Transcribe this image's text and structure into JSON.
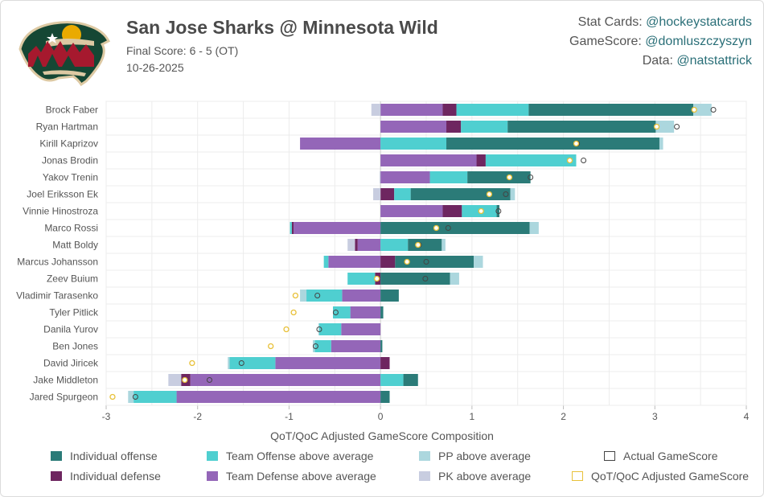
{
  "header": {
    "title": "San Jose Sharks @ Minnesota Wild",
    "final_score": "Final Score: 6 - 5 (OT)",
    "date": "10-26-2025",
    "credits": [
      {
        "label": "Stat Cards: ",
        "handle": "@hockeystatcards"
      },
      {
        "label": "GameScore: ",
        "handle": "@domluszczyszyn"
      },
      {
        "label": "Data: ",
        "handle": "@natstattrick"
      }
    ]
  },
  "colors": {
    "ind_off": "#2b7b78",
    "ind_def": "#6e2660",
    "team_off": "#4fcfd0",
    "team_def": "#9466b8",
    "pp": "#acd7de",
    "pk": "#c8cde0",
    "actual": "#444444",
    "adjusted": "#e8c13a"
  },
  "chart_data": {
    "type": "bar",
    "orientation": "horizontal",
    "stacked": true,
    "title": "",
    "xlabel": "QoT/QoC Adjusted GameScore Composition",
    "ylabel": "",
    "xlim": [
      -3,
      4
    ],
    "xticks": [
      "-3",
      "-2",
      "-1",
      "0",
      "1",
      "2",
      "3",
      "4"
    ],
    "grid": true,
    "legend_position": "bottom",
    "categories": [
      "Brock Faber",
      "Ryan Hartman",
      "Kirill Kaprizov",
      "Jonas Brodin",
      "Yakov Trenin",
      "Joel Eriksson Ek",
      "Vinnie Hinostroza",
      "Marco Rossi",
      "Matt Boldy",
      "Marcus Johansson",
      "Zeev Buium",
      "Vladimir Tarasenko",
      "Tyler Pitlick",
      "Danila Yurov",
      "Ben Jones",
      "David Jiricek",
      "Jake Middleton",
      "Jared Spurgeon"
    ],
    "series": [
      {
        "key": "team_def",
        "name": "Team Defense above average",
        "values": [
          0.68,
          0.72,
          -0.88,
          1.05,
          0.54,
          0.0,
          0.68,
          -0.95,
          -0.25,
          -0.57,
          0.0,
          -0.42,
          -0.33,
          -0.43,
          -0.54,
          -1.15,
          -2.08,
          -2.23
        ]
      },
      {
        "key": "ind_def",
        "name": "Individual defense",
        "values": [
          0.15,
          0.16,
          0.0,
          0.1,
          0.0,
          0.15,
          0.21,
          -0.02,
          -0.03,
          0.16,
          -0.06,
          0.0,
          0.0,
          0.0,
          0.0,
          0.1,
          -0.1,
          0.0
        ]
      },
      {
        "key": "team_off",
        "name": "Team Offense above average",
        "values": [
          0.79,
          0.51,
          0.72,
          0.99,
          0.41,
          0.18,
          0.38,
          -0.02,
          0.3,
          -0.05,
          -0.3,
          -0.39,
          -0.19,
          -0.24,
          -0.18,
          -0.5,
          0.25,
          -0.47
        ]
      },
      {
        "key": "ind_off",
        "name": "Individual offense",
        "values": [
          1.8,
          1.62,
          2.33,
          0.0,
          0.69,
          1.09,
          0.03,
          1.63,
          0.37,
          0.86,
          0.76,
          0.2,
          0.03,
          0.0,
          0.02,
          0.0,
          0.16,
          0.1
        ]
      },
      {
        "key": "pp",
        "name": "PP above average",
        "values": [
          0.2,
          0.2,
          0.04,
          0.0,
          0.0,
          0.05,
          0.0,
          0.1,
          0.04,
          0.1,
          0.1,
          -0.07,
          0.0,
          -0.01,
          -0.02,
          -0.02,
          0.0,
          -0.06
        ]
      },
      {
        "key": "pk",
        "name": "PK above average",
        "values": [
          -0.1,
          0.0,
          0.0,
          0.0,
          -0.01,
          -0.08,
          0.0,
          0.0,
          -0.08,
          0.0,
          0.0,
          0.0,
          0.0,
          0.0,
          0.0,
          0.0,
          -0.14,
          0.0
        ]
      }
    ],
    "actual_gamescore": {
      "name": "Actual GameScore",
      "values": [
        3.64,
        3.24,
        2.15,
        2.22,
        1.64,
        1.37,
        1.29,
        0.74,
        0.42,
        0.5,
        0.49,
        -0.69,
        -0.49,
        -0.67,
        -0.71,
        -1.52,
        -1.87,
        -2.68
      ]
    },
    "adjusted_gamescore": {
      "name": "QoT/QoC Adjusted GameScore",
      "values": [
        3.43,
        3.02,
        2.14,
        2.07,
        1.41,
        1.19,
        1.1,
        0.61,
        0.41,
        0.29,
        -0.04,
        -0.93,
        -0.95,
        -1.03,
        -1.2,
        -2.06,
        -2.14,
        -2.93
      ]
    },
    "legend": [
      {
        "key": "ind_off",
        "name": "Individual offense"
      },
      {
        "key": "team_off",
        "name": "Team Offense above average"
      },
      {
        "key": "pp",
        "name": "PP above average"
      },
      {
        "key": "actual",
        "name": "Actual GameScore"
      },
      {
        "key": "ind_def",
        "name": "Individual defense"
      },
      {
        "key": "team_def",
        "name": "Team Defense above average"
      },
      {
        "key": "pk",
        "name": "PK above average"
      },
      {
        "key": "adjusted",
        "name": "QoT/QoC Adjusted GameScore"
      }
    ]
  }
}
